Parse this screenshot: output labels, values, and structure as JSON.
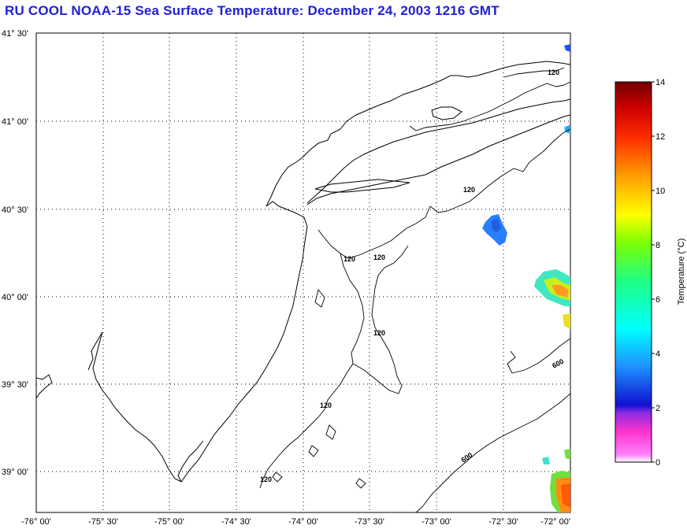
{
  "title": "RU COOL  NOAA-15  Sea Surface Temperature:  December 24, 2003 1216 GMT",
  "latitude_labels": [
    "41° 30'",
    "41° 00'",
    "40° 30'",
    "40° 00'",
    "39° 30'",
    "39° 00'"
  ],
  "longitude_labels": [
    "-76° 00'",
    "-75° 30'",
    "-75° 00'",
    "-74° 30'",
    "-74° 00'",
    "-73° 30'",
    "-73° 00'",
    "-72° 30'",
    "-72° 00'"
  ],
  "isobath_labels": [
    "120",
    "120",
    "120",
    "120",
    "120",
    "120",
    "120",
    "600",
    "600"
  ],
  "colorbar": {
    "label": "Temperature (°C)",
    "ticks": [
      "14",
      "12",
      "10",
      "8",
      "6",
      "4",
      "2",
      "0"
    ],
    "range": [
      0,
      14
    ],
    "stops": [
      "#ff80ff",
      "#ff33cc",
      "#8a2be2",
      "#1010d0",
      "#1e90ff",
      "#00ffff",
      "#20ff80",
      "#80ff00",
      "#ffff00",
      "#ffa000",
      "#ff4000",
      "#d00000",
      "#800000"
    ]
  }
}
